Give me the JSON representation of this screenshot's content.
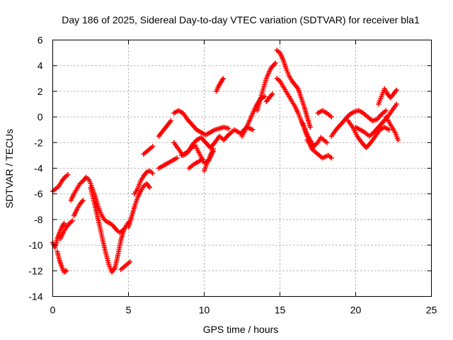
{
  "chart_data": {
    "type": "scatter",
    "title": "Day 186 of 2025, Sidereal Day-to-day VTEC variation (SDTVAR) for receiver bla1",
    "xlabel": "GPS time / hours",
    "ylabel": "SDTVAR / TECUs",
    "xlim": [
      0,
      25
    ],
    "ylim": [
      -14,
      6
    ],
    "xticks": [
      "0",
      "5",
      "10",
      "15",
      "20",
      "25"
    ],
    "yticks": [
      "-14",
      "-12",
      "-10",
      "-8",
      "-6",
      "-4",
      "-2",
      "0",
      "2",
      "4",
      "6"
    ],
    "grid": true,
    "marker": "+",
    "colors": {
      "points": "#ff0000",
      "grid": "#a0a0a0",
      "axes": "#000000"
    },
    "series": [
      {
        "name": "s1",
        "x": [
          0,
          0.2,
          0.4,
          0.6,
          0.8,
          1.0
        ],
        "y": [
          -5.8,
          -5.6,
          -5.4,
          -5.0,
          -4.7,
          -4.5
        ]
      },
      {
        "name": "s2",
        "x": [
          0,
          0.15,
          0.3,
          0.45,
          0.6,
          0.75
        ],
        "y": [
          -9.8,
          -10.2,
          -9.5,
          -9.0,
          -8.6,
          -8.3
        ]
      },
      {
        "name": "s3",
        "x": [
          0.3,
          0.45,
          0.6,
          0.75,
          0.9
        ],
        "y": [
          -10.5,
          -11.2,
          -11.7,
          -12.1,
          -12.0
        ]
      },
      {
        "name": "s4",
        "x": [
          0.5,
          0.7,
          0.9,
          1.1,
          1.3
        ],
        "y": [
          -9.5,
          -9.0,
          -8.6,
          -8.3,
          -8.1
        ]
      },
      {
        "name": "s5",
        "x": [
          1.2,
          1.4,
          1.6,
          1.8,
          2.0
        ],
        "y": [
          -6.5,
          -6.0,
          -5.6,
          -5.2,
          -5.0
        ]
      },
      {
        "name": "s6",
        "x": [
          1.4,
          1.6,
          1.8,
          2.0
        ],
        "y": [
          -7.7,
          -7.2,
          -6.8,
          -6.5
        ]
      },
      {
        "name": "s7",
        "x": [
          2.0,
          2.2,
          2.4,
          2.6,
          2.8,
          3.0,
          3.2,
          3.4,
          3.6,
          3.8,
          4.0,
          4.2,
          4.4,
          4.6,
          4.8,
          5.0
        ],
        "y": [
          -5.0,
          -4.7,
          -4.9,
          -5.5,
          -6.2,
          -7.0,
          -7.6,
          -8.0,
          -8.2,
          -8.3,
          -8.5,
          -8.8,
          -9.0,
          -8.9,
          -8.6,
          -8.2
        ]
      },
      {
        "name": "s8",
        "x": [
          2.5,
          2.7,
          2.9,
          3.1,
          3.3,
          3.5,
          3.7,
          3.9,
          4.1,
          4.3,
          4.5,
          4.7
        ],
        "y": [
          -5.5,
          -6.5,
          -7.5,
          -8.5,
          -9.6,
          -10.6,
          -11.5,
          -12.1,
          -11.8,
          -10.8,
          -9.6,
          -8.8
        ]
      },
      {
        "name": "s9",
        "x": [
          4.5,
          4.7,
          4.9,
          5.1
        ],
        "y": [
          -11.9,
          -11.7,
          -11.5,
          -11.3
        ]
      },
      {
        "name": "s10",
        "x": [
          5.0,
          5.2,
          5.4,
          5.6,
          5.8,
          6.0,
          6.2,
          6.4
        ],
        "y": [
          -8.6,
          -7.8,
          -7.0,
          -6.3,
          -5.8,
          -5.4,
          -5.2,
          -5.5
        ]
      },
      {
        "name": "s11",
        "x": [
          5.4,
          5.6,
          5.8,
          6.0,
          6.2,
          6.4,
          6.6
        ],
        "y": [
          -6.0,
          -5.6,
          -5.0,
          -4.6,
          -4.3,
          -4.2,
          -4.4
        ]
      },
      {
        "name": "s12",
        "x": [
          6.0,
          6.2,
          6.4,
          6.6
        ],
        "y": [
          -2.9,
          -2.7,
          -2.5,
          -2.3
        ]
      },
      {
        "name": "s13",
        "x": [
          7.0,
          7.2,
          7.4,
          7.6,
          7.8
        ],
        "y": [
          -1.5,
          -1.2,
          -0.9,
          -0.6,
          -0.3
        ]
      },
      {
        "name": "s14",
        "x": [
          7.0,
          7.3,
          7.6,
          7.9,
          8.2
        ],
        "y": [
          -4.0,
          -3.8,
          -3.6,
          -3.4,
          -3.2
        ]
      },
      {
        "name": "s15",
        "x": [
          8.0,
          8.3,
          8.6,
          8.9,
          9.2,
          9.5,
          9.8,
          10.1,
          10.4,
          10.7,
          11.0,
          11.3,
          11.6
        ],
        "y": [
          0.3,
          0.5,
          0.3,
          -0.2,
          -0.6,
          -1.0,
          -1.2,
          -1.4,
          -1.2,
          -1.0,
          -0.9,
          -0.8,
          -0.9
        ]
      },
      {
        "name": "s16",
        "x": [
          8.0,
          8.3,
          8.6,
          8.9,
          9.2,
          9.5,
          9.8,
          10.1,
          10.4,
          10.7,
          11.0,
          11.3,
          11.6,
          12.0,
          12.4,
          12.8,
          13.2
        ],
        "y": [
          -2.0,
          -2.5,
          -3.0,
          -2.8,
          -2.2,
          -1.8,
          -1.6,
          -2.0,
          -2.4,
          -2.0,
          -1.5,
          -1.8,
          -1.4,
          -1.0,
          -1.3,
          -0.8,
          -1.0
        ]
      },
      {
        "name": "s17",
        "x": [
          8.5,
          8.8,
          9.1,
          9.4,
          9.7,
          10.0,
          10.3,
          10.6
        ],
        "y": [
          -3.0,
          -2.8,
          -2.5,
          -2.2,
          -2.9,
          -3.6,
          -3.4,
          -2.7
        ]
      },
      {
        "name": "s18",
        "x": [
          9.0,
          9.3,
          9.6,
          9.9
        ],
        "y": [
          -4.0,
          -3.7,
          -3.5,
          -3.3
        ]
      },
      {
        "name": "s19",
        "x": [
          10.0,
          10.2,
          10.4,
          10.6
        ],
        "y": [
          -4.2,
          -3.6,
          -3.0,
          -2.5
        ]
      },
      {
        "name": "s20",
        "x": [
          10.8,
          10.95,
          11.1,
          11.25
        ],
        "y": [
          2.0,
          2.4,
          2.7,
          3.0
        ]
      },
      {
        "name": "s21",
        "x": [
          12.5,
          12.8,
          13.1,
          13.4,
          13.7,
          14.0
        ],
        "y": [
          -1.5,
          -0.8,
          0.0,
          0.8,
          1.4,
          1.6
        ]
      },
      {
        "name": "s22",
        "x": [
          13.5,
          13.8,
          14.1,
          14.4,
          14.7
        ],
        "y": [
          0.5,
          1.8,
          3.0,
          3.8,
          4.2
        ]
      },
      {
        "name": "s23",
        "x": [
          14.1,
          14.3,
          14.5
        ],
        "y": [
          1.2,
          1.5,
          1.8
        ]
      },
      {
        "name": "s24",
        "x": [
          14.8,
          15.0,
          15.2,
          15.4,
          15.6,
          15.8,
          16.0,
          16.2,
          16.4,
          16.6,
          16.8,
          17.0
        ],
        "y": [
          5.2,
          5.0,
          4.5,
          3.8,
          3.2,
          2.8,
          2.5,
          2.2,
          1.5,
          0.8,
          0.0,
          -0.8
        ]
      },
      {
        "name": "s25",
        "x": [
          14.8,
          15.0,
          15.2,
          15.4,
          15.6,
          15.8,
          16.0,
          16.2,
          16.4,
          16.6,
          16.8,
          17.0,
          17.2
        ],
        "y": [
          3.0,
          2.8,
          2.4,
          2.0,
          1.6,
          1.2,
          0.8,
          0.3,
          -0.3,
          -0.8,
          -1.4,
          -1.8,
          -2.2
        ]
      },
      {
        "name": "s26",
        "x": [
          16.5,
          16.7,
          16.9,
          17.1,
          17.3,
          17.5,
          17.7,
          17.9,
          18.1
        ],
        "y": [
          -0.5,
          -1.2,
          -1.8,
          -2.5,
          -2.2,
          -2.0,
          -1.6,
          -1.8,
          -2.0
        ]
      },
      {
        "name": "s27",
        "x": [
          16.8,
          17.0,
          17.2,
          17.4,
          17.6,
          17.8,
          18.0,
          18.2,
          18.4
        ],
        "y": [
          -1.8,
          -2.2,
          -2.6,
          -2.8,
          -3.0,
          -3.2,
          -3.1,
          -3.0,
          -3.2
        ]
      },
      {
        "name": "s28",
        "x": [
          17.5,
          17.8,
          18.1,
          18.4
        ],
        "y": [
          0.3,
          0.5,
          0.3,
          0.0
        ]
      },
      {
        "name": "s29",
        "x": [
          18.4,
          18.7,
          19.0,
          19.3,
          19.6,
          19.9,
          20.2,
          20.5,
          20.8,
          21.1,
          21.4,
          21.7,
          22.0
        ],
        "y": [
          -1.5,
          -1.0,
          -0.6,
          -0.2,
          0.2,
          0.4,
          0.5,
          0.3,
          0.0,
          -0.3,
          -0.2,
          0.2,
          0.5
        ]
      },
      {
        "name": "s30",
        "x": [
          19.5,
          19.8,
          20.1,
          20.4,
          20.7,
          21.0,
          21.3,
          21.6,
          21.9,
          22.2
        ],
        "y": [
          -0.3,
          -0.8,
          -1.5,
          -2.0,
          -2.4,
          -2.0,
          -1.5,
          -1.0,
          -0.8,
          -1.0
        ]
      },
      {
        "name": "s31",
        "x": [
          20.0,
          20.3,
          20.6,
          20.9,
          21.2,
          21.5,
          21.8,
          22.1,
          22.4,
          22.7
        ],
        "y": [
          -0.8,
          -1.0,
          -1.2,
          -1.5,
          -1.2,
          -0.8,
          -0.4,
          0.0,
          0.5,
          1.0
        ]
      },
      {
        "name": "s32",
        "x": [
          21.5,
          21.7,
          21.9,
          22.1,
          22.3,
          22.5,
          22.7
        ],
        "y": [
          1.0,
          1.6,
          2.2,
          1.8,
          1.5,
          1.8,
          2.1
        ]
      },
      {
        "name": "s33",
        "x": [
          22.0,
          22.2,
          22.4,
          22.6,
          22.8
        ],
        "y": [
          0.0,
          -0.4,
          -0.8,
          -1.2,
          -1.8
        ]
      }
    ]
  }
}
